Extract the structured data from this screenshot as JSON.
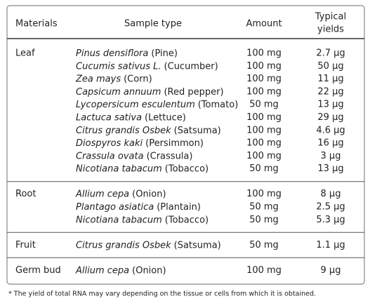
{
  "header": {
    "materials": "Materials",
    "sample_type": "Sample type",
    "amount": "Amount",
    "yields": [
      "Typical",
      "yields"
    ]
  },
  "groups": [
    {
      "material": "Leaf",
      "rows": [
        {
          "species": "Pinus densiflora",
          "common": "(Pine)",
          "amount": "100 mg",
          "yield": "2.7 µg"
        },
        {
          "species": "Cucumis sativus L.",
          "common": "(Cucumber)",
          "amount": "100 mg",
          "yield": "50 µg"
        },
        {
          "species": "Zea mays",
          "common": "(Corn)",
          "amount": "100 mg",
          "yield": "11 µg"
        },
        {
          "species": "Capsicum annuum",
          "common": "(Red pepper)",
          "amount": "100 mg",
          "yield": "22 µg"
        },
        {
          "species": "Lycopersicum esculentum",
          "common": "(Tomato)",
          "amount": "50 mg",
          "yield": "13 µg"
        },
        {
          "species": "Lactuca sativa",
          "common": "(Lettuce)",
          "amount": "100 mg",
          "yield": "29 µg"
        },
        {
          "species": "Citrus grandis Osbek",
          "common": "(Satsuma)",
          "amount": "100 mg",
          "yield": "4.6 µg"
        },
        {
          "species": "Diospyros kaki",
          "common": "(Persimmon)",
          "amount": "100 mg",
          "yield": "16 µg"
        },
        {
          "species": "Crassula ovata",
          "common": "(Crassula)",
          "amount": "100 mg",
          "yield": "3 µg"
        },
        {
          "species": "Nicotiana tabacum",
          "common": "(Tobacco)",
          "amount": "50 mg",
          "yield": "13 µg"
        }
      ]
    },
    {
      "material": "Root",
      "rows": [
        {
          "species": "Allium cepa",
          "common": "(Onion)",
          "amount": "100 mg",
          "yield": "8 µg"
        },
        {
          "species": "Plantago asiatica",
          "common": "(Plantain)",
          "amount": "50 mg",
          "yield": "2.5 µg"
        },
        {
          "species": "Nicotiana tabacum",
          "common": "(Tobacco)",
          "amount": "50 mg",
          "yield": "5.3 µg"
        }
      ]
    },
    {
      "material": "Fruit",
      "rows": [
        {
          "species": "Citrus grandis Osbek",
          "common": "(Satsuma)",
          "amount": "50 mg",
          "yield": "1.1 µg"
        }
      ]
    },
    {
      "material": "Germ bud",
      "rows": [
        {
          "species": "Allium cepa",
          "common": "(Onion)",
          "amount": "100 mg",
          "yield": "9 µg"
        }
      ]
    }
  ],
  "footnote": "* The yield of total RNA may vary depending on the tissue or cells from which it is obtained."
}
